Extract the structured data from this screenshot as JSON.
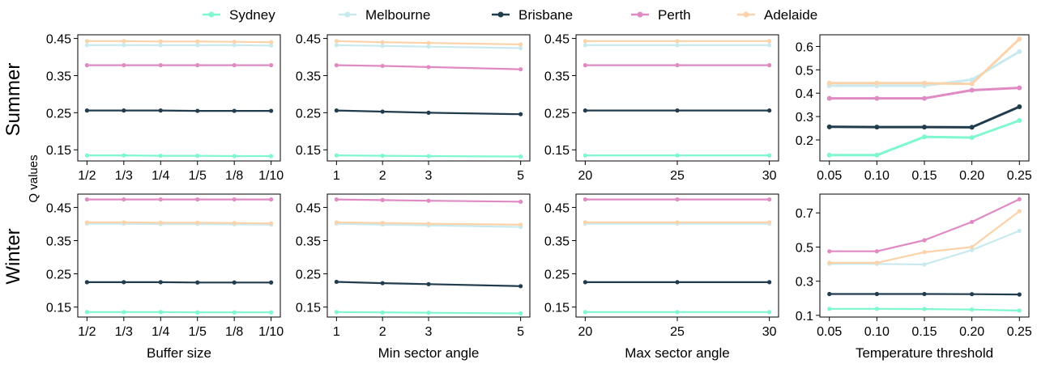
{
  "figure": {
    "row_labels": [
      "Summer",
      "Winter"
    ],
    "shared_ylabel": "Q values",
    "legend_position": "top-center"
  },
  "series_styles": [
    {
      "name": "Sydney",
      "color": "#7ff7cf"
    },
    {
      "name": "Melbourne",
      "color": "#c8eaef"
    },
    {
      "name": "Brisbane",
      "color": "#203c4d"
    },
    {
      "name": "Perth",
      "color": "#e08ac4"
    },
    {
      "name": "Adelaide",
      "color": "#fbd2a9"
    }
  ],
  "chart_data": [
    {
      "type": "line",
      "row": "Summer",
      "col": 0,
      "xlabel": "",
      "x_scale": "categorical",
      "categories": [
        "1/2",
        "1/3",
        "1/4",
        "1/5",
        "1/8",
        "1/10"
      ],
      "ylim": [
        0.12,
        0.46
      ],
      "yticks": [
        0.15,
        0.25,
        0.35,
        0.45
      ],
      "ytick_labels": [
        "0.15",
        "0.25",
        "0.35",
        "0.45"
      ],
      "series": [
        {
          "name": "Sydney",
          "values": [
            0.135,
            0.135,
            0.134,
            0.134,
            0.133,
            0.133
          ]
        },
        {
          "name": "Melbourne",
          "values": [
            0.432,
            0.432,
            0.432,
            0.432,
            0.432,
            0.431
          ]
        },
        {
          "name": "Brisbane",
          "values": [
            0.256,
            0.256,
            0.256,
            0.255,
            0.255,
            0.255
          ]
        },
        {
          "name": "Perth",
          "values": [
            0.378,
            0.378,
            0.378,
            0.378,
            0.378,
            0.378
          ]
        },
        {
          "name": "Adelaide",
          "values": [
            0.443,
            0.443,
            0.442,
            0.442,
            0.441,
            0.44
          ]
        }
      ]
    },
    {
      "type": "line",
      "row": "Summer",
      "col": 1,
      "xlabel": "",
      "x_scale": "linear",
      "x": [
        1,
        2,
        3,
        5
      ],
      "xlim": [
        0.8,
        5.2
      ],
      "xticks": [
        1,
        2,
        3,
        5
      ],
      "xtick_labels": [
        "1",
        "2",
        "3",
        "5"
      ],
      "ylim": [
        0.12,
        0.46
      ],
      "yticks": [
        0.15,
        0.25,
        0.35,
        0.45
      ],
      "ytick_labels": [
        "0.15",
        "0.25",
        "0.35",
        "0.45"
      ],
      "series": [
        {
          "name": "Sydney",
          "values": [
            0.135,
            0.134,
            0.133,
            0.132
          ]
        },
        {
          "name": "Melbourne",
          "values": [
            0.432,
            0.43,
            0.428,
            0.424
          ]
        },
        {
          "name": "Brisbane",
          "values": [
            0.256,
            0.253,
            0.25,
            0.246
          ]
        },
        {
          "name": "Perth",
          "values": [
            0.378,
            0.376,
            0.373,
            0.367
          ]
        },
        {
          "name": "Adelaide",
          "values": [
            0.443,
            0.44,
            0.438,
            0.434
          ]
        }
      ]
    },
    {
      "type": "line",
      "row": "Summer",
      "col": 2,
      "xlabel": "",
      "x_scale": "linear",
      "x": [
        20,
        25,
        30
      ],
      "xlim": [
        19.5,
        30.5
      ],
      "xticks": [
        20,
        25,
        30
      ],
      "xtick_labels": [
        "20",
        "25",
        "30"
      ],
      "ylim": [
        0.12,
        0.46
      ],
      "yticks": [
        0.15,
        0.25,
        0.35,
        0.45
      ],
      "ytick_labels": [
        "0.15",
        "0.25",
        "0.35",
        "0.45"
      ],
      "series": [
        {
          "name": "Sydney",
          "values": [
            0.135,
            0.135,
            0.135
          ]
        },
        {
          "name": "Melbourne",
          "values": [
            0.432,
            0.432,
            0.432
          ]
        },
        {
          "name": "Brisbane",
          "values": [
            0.256,
            0.256,
            0.256
          ]
        },
        {
          "name": "Perth",
          "values": [
            0.378,
            0.378,
            0.378
          ]
        },
        {
          "name": "Adelaide",
          "values": [
            0.443,
            0.443,
            0.443
          ]
        }
      ]
    },
    {
      "type": "line",
      "row": "Summer",
      "col": 3,
      "xlabel": "",
      "x_scale": "linear",
      "emphasis": true,
      "x": [
        0.05,
        0.1,
        0.15,
        0.2,
        0.25
      ],
      "xlim": [
        0.04,
        0.26
      ],
      "xticks": [
        0.05,
        0.1,
        0.15,
        0.2,
        0.25
      ],
      "xtick_labels": [
        "0.05",
        "0.10",
        "0.15",
        "0.20",
        "0.25"
      ],
      "ylim": [
        0.11,
        0.65
      ],
      "yticks": [
        0.2,
        0.3,
        0.4,
        0.5,
        0.6
      ],
      "ytick_labels": [
        "0.2",
        "0.3",
        "0.4",
        "0.5",
        "0.6"
      ],
      "series": [
        {
          "name": "Sydney",
          "values": [
            0.135,
            0.135,
            0.213,
            0.21,
            0.283
          ]
        },
        {
          "name": "Melbourne",
          "values": [
            0.432,
            0.432,
            0.432,
            0.458,
            0.578
          ]
        },
        {
          "name": "Brisbane",
          "values": [
            0.256,
            0.255,
            0.255,
            0.254,
            0.342
          ]
        },
        {
          "name": "Perth",
          "values": [
            0.378,
            0.378,
            0.378,
            0.413,
            0.423
          ]
        },
        {
          "name": "Adelaide",
          "values": [
            0.443,
            0.443,
            0.443,
            0.44,
            0.632
          ]
        }
      ]
    },
    {
      "type": "line",
      "row": "Winter",
      "col": 0,
      "xlabel": "Buffer size",
      "x_scale": "categorical",
      "categories": [
        "1/2",
        "1/3",
        "1/4",
        "1/5",
        "1/8",
        "1/10"
      ],
      "ylim": [
        0.12,
        0.49
      ],
      "yticks": [
        0.15,
        0.25,
        0.35,
        0.45
      ],
      "ytick_labels": [
        "0.15",
        "0.25",
        "0.35",
        "0.45"
      ],
      "series": [
        {
          "name": "Sydney",
          "values": [
            0.135,
            0.135,
            0.135,
            0.134,
            0.134,
            0.134
          ]
        },
        {
          "name": "Melbourne",
          "values": [
            0.401,
            0.401,
            0.4,
            0.4,
            0.399,
            0.398
          ]
        },
        {
          "name": "Brisbane",
          "values": [
            0.225,
            0.225,
            0.225,
            0.224,
            0.224,
            0.224
          ]
        },
        {
          "name": "Perth",
          "values": [
            0.474,
            0.474,
            0.474,
            0.474,
            0.474,
            0.474
          ]
        },
        {
          "name": "Adelaide",
          "values": [
            0.405,
            0.405,
            0.404,
            0.404,
            0.403,
            0.402
          ]
        }
      ]
    },
    {
      "type": "line",
      "row": "Winter",
      "col": 1,
      "xlabel": "Min sector angle",
      "x_scale": "linear",
      "x": [
        1,
        2,
        3,
        5
      ],
      "xlim": [
        0.8,
        5.2
      ],
      "xticks": [
        1,
        2,
        3,
        5
      ],
      "xtick_labels": [
        "1",
        "2",
        "3",
        "5"
      ],
      "ylim": [
        0.12,
        0.49
      ],
      "yticks": [
        0.15,
        0.25,
        0.35,
        0.45
      ],
      "ytick_labels": [
        "0.15",
        "0.25",
        "0.35",
        "0.45"
      ],
      "series": [
        {
          "name": "Sydney",
          "values": [
            0.135,
            0.134,
            0.133,
            0.131
          ]
        },
        {
          "name": "Melbourne",
          "values": [
            0.401,
            0.398,
            0.396,
            0.391
          ]
        },
        {
          "name": "Brisbane",
          "values": [
            0.226,
            0.222,
            0.219,
            0.213
          ]
        },
        {
          "name": "Perth",
          "values": [
            0.474,
            0.472,
            0.47,
            0.467
          ]
        },
        {
          "name": "Adelaide",
          "values": [
            0.405,
            0.403,
            0.401,
            0.398
          ]
        }
      ]
    },
    {
      "type": "line",
      "row": "Winter",
      "col": 2,
      "xlabel": "Max sector angle",
      "x_scale": "linear",
      "x": [
        20,
        25,
        30
      ],
      "xlim": [
        19.5,
        30.5
      ],
      "xticks": [
        20,
        25,
        30
      ],
      "xtick_labels": [
        "20",
        "25",
        "30"
      ],
      "ylim": [
        0.12,
        0.49
      ],
      "yticks": [
        0.15,
        0.25,
        0.35,
        0.45
      ],
      "ytick_labels": [
        "0.15",
        "0.25",
        "0.35",
        "0.45"
      ],
      "series": [
        {
          "name": "Sydney",
          "values": [
            0.135,
            0.135,
            0.135
          ]
        },
        {
          "name": "Melbourne",
          "values": [
            0.401,
            0.401,
            0.401
          ]
        },
        {
          "name": "Brisbane",
          "values": [
            0.225,
            0.225,
            0.225
          ]
        },
        {
          "name": "Perth",
          "values": [
            0.474,
            0.474,
            0.474
          ]
        },
        {
          "name": "Adelaide",
          "values": [
            0.405,
            0.405,
            0.405
          ]
        }
      ]
    },
    {
      "type": "line",
      "row": "Winter",
      "col": 3,
      "xlabel": "Temperature threshold",
      "x_scale": "linear",
      "x": [
        0.05,
        0.1,
        0.15,
        0.2,
        0.25
      ],
      "xlim": [
        0.04,
        0.26
      ],
      "xticks": [
        0.05,
        0.1,
        0.15,
        0.2,
        0.25
      ],
      "xtick_labels": [
        "0.05",
        "0.10",
        "0.15",
        "0.20",
        "0.25"
      ],
      "ylim": [
        0.09,
        0.81
      ],
      "yticks": [
        0.1,
        0.3,
        0.5,
        0.7
      ],
      "ytick_labels": [
        "0.1",
        "0.3",
        "0.5",
        "0.7"
      ],
      "series": [
        {
          "name": "Sydney",
          "values": [
            0.138,
            0.138,
            0.137,
            0.134,
            0.128
          ]
        },
        {
          "name": "Melbourne",
          "values": [
            0.401,
            0.401,
            0.398,
            0.482,
            0.595
          ]
        },
        {
          "name": "Brisbane",
          "values": [
            0.225,
            0.225,
            0.225,
            0.224,
            0.222
          ]
        },
        {
          "name": "Perth",
          "values": [
            0.475,
            0.475,
            0.54,
            0.647,
            0.78
          ]
        },
        {
          "name": "Adelaide",
          "values": [
            0.408,
            0.408,
            0.47,
            0.5,
            0.71
          ]
        }
      ]
    }
  ]
}
